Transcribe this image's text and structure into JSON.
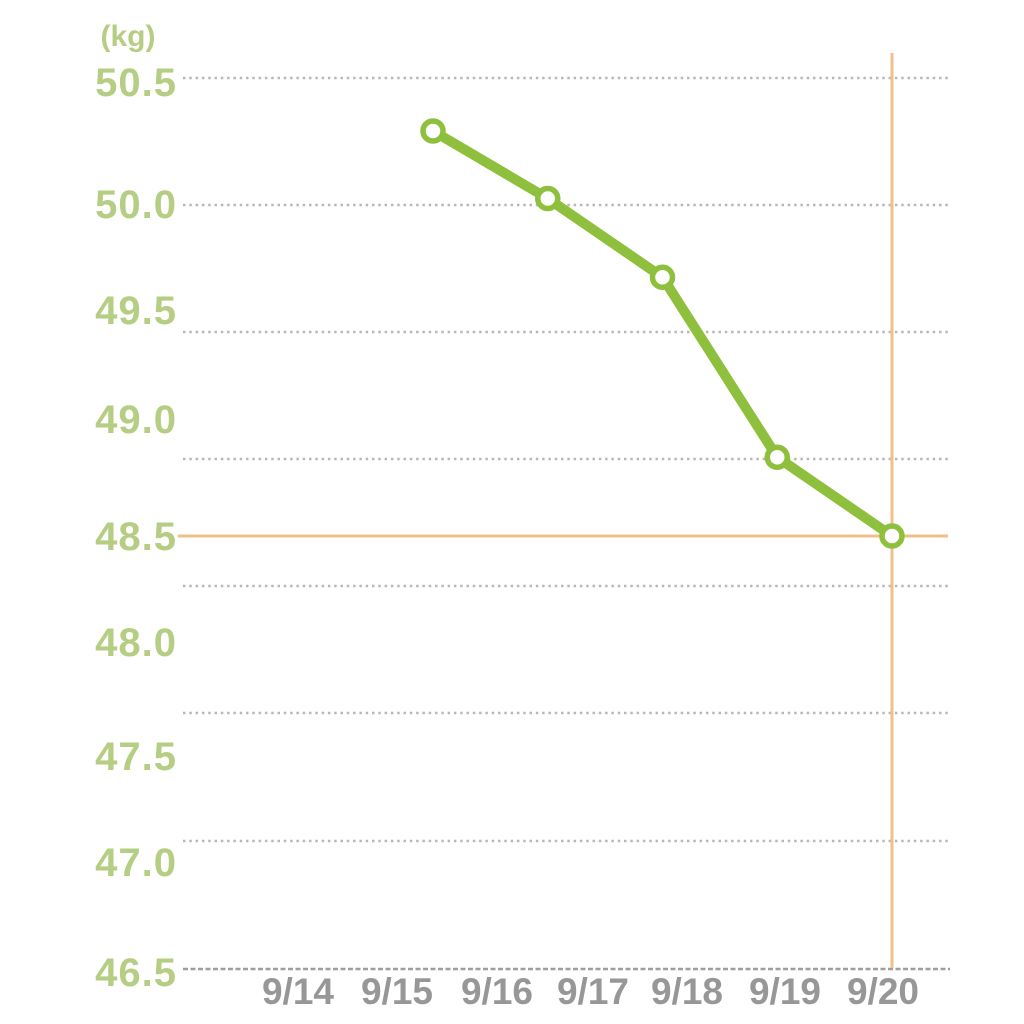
{
  "chart_data": {
    "type": "line",
    "title": "",
    "unit_label": "(kg)",
    "ylabel": "(kg)",
    "yticks": [
      "50.5",
      "50.0",
      "49.5",
      "49.0",
      "48.5",
      "48.0",
      "47.5",
      "47.0",
      "46.5"
    ],
    "ylim": [
      46.5,
      50.5
    ],
    "xticks": [
      "9/14",
      "9/15",
      "9/16",
      "9/17",
      "9/18",
      "9/19",
      "9/20"
    ],
    "grid": "horizontal-dotted",
    "legend": "none",
    "series": [
      {
        "name": "weight-kg",
        "x": [
          "9/16",
          "9/17",
          "9/18",
          "9/19",
          "9/20"
        ],
        "values": [
          50.3,
          50.0,
          49.65,
          48.85,
          48.5
        ]
      }
    ],
    "highlight": {
      "x": "9/20",
      "value": 48.5,
      "style": "orange-crosshair"
    },
    "colors": {
      "line": "#8ec03e",
      "marker_fill": "#ffffff",
      "marker_stroke": "#8ec03e",
      "ytick_label": "#b5ce83",
      "xtick_label": "#979797",
      "gridline": "#b8b8b8",
      "axis_line": "#9e9e9e",
      "crosshair": "#f0c08a",
      "background": "#ffffff"
    }
  }
}
